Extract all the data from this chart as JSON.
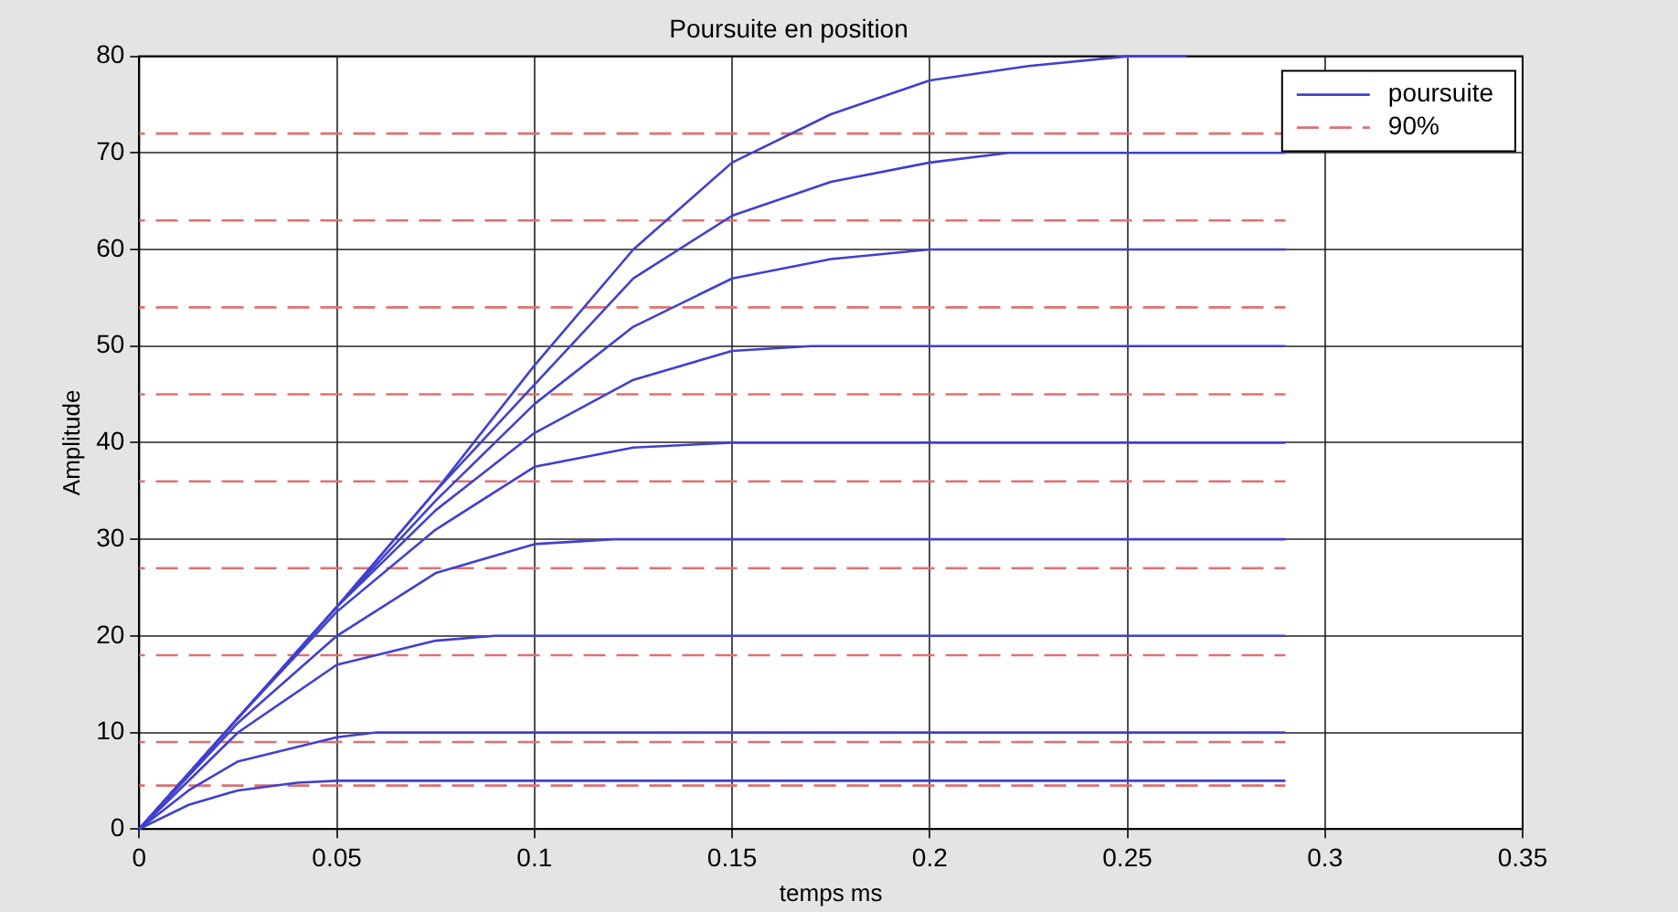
{
  "chart_data": {
    "type": "line",
    "title": "Poursuite en position",
    "xlabel": "temps ms",
    "ylabel": "Amplitude",
    "xlim": [
      0,
      0.35
    ],
    "xticks": [
      0,
      0.05,
      0.1,
      0.15,
      0.2,
      0.25,
      0.3,
      0.35
    ],
    "ylim": [
      0,
      80
    ],
    "yticks": [
      0,
      10,
      20,
      30,
      40,
      50,
      60,
      70,
      80
    ],
    "grid": true,
    "legend": "top right",
    "marker": "none",
    "series": [
      {
        "name": "poursuite",
        "color": "#4040d0",
        "x": [
          0,
          0.025,
          0.05,
          0.075,
          0.1,
          0.125,
          0.15,
          0.175,
          0.2,
          0.225,
          0.25,
          0.265
        ],
        "values": [
          0,
          11.5,
          23,
          35,
          48,
          60,
          69,
          74,
          77.5,
          79,
          80,
          80
        ]
      },
      {
        "color": "#4040d0",
        "x": [
          0,
          0.025,
          0.05,
          0.075,
          0.1,
          0.125,
          0.15,
          0.175,
          0.2,
          0.22,
          0.29
        ],
        "values": [
          0,
          11.5,
          23,
          35,
          46,
          57,
          63.5,
          67,
          69,
          70,
          70
        ]
      },
      {
        "color": "#4040d0",
        "x": [
          0,
          0.025,
          0.05,
          0.075,
          0.1,
          0.125,
          0.15,
          0.175,
          0.2,
          0.21,
          0.29
        ],
        "values": [
          0,
          11.5,
          23,
          34,
          44,
          52,
          57,
          59,
          60,
          60,
          60
        ]
      },
      {
        "color": "#4040d0",
        "x": [
          0,
          0.025,
          0.05,
          0.075,
          0.1,
          0.125,
          0.15,
          0.17,
          0.29
        ],
        "values": [
          0,
          11.5,
          23,
          33,
          41,
          46.5,
          49.5,
          50,
          50
        ]
      },
      {
        "color": "#4040d0",
        "x": [
          0,
          0.025,
          0.05,
          0.075,
          0.1,
          0.125,
          0.15,
          0.29
        ],
        "values": [
          0,
          11.5,
          22.5,
          31,
          37.5,
          39.5,
          40,
          40
        ]
      },
      {
        "color": "#4040d0",
        "x": [
          0,
          0.025,
          0.05,
          0.075,
          0.1,
          0.12,
          0.29
        ],
        "values": [
          0,
          11,
          20,
          26.5,
          29.5,
          30,
          30
        ]
      },
      {
        "color": "#4040d0",
        "x": [
          0,
          0.025,
          0.05,
          0.075,
          0.09,
          0.29
        ],
        "values": [
          0,
          10,
          17,
          19.5,
          20,
          20
        ]
      },
      {
        "color": "#4040d0",
        "x": [
          0,
          0.0125,
          0.025,
          0.05,
          0.06,
          0.29
        ],
        "values": [
          0,
          4,
          7,
          9.5,
          10,
          10
        ]
      },
      {
        "color": "#4040d0",
        "x": [
          0,
          0.0125,
          0.025,
          0.04,
          0.05,
          0.29
        ],
        "values": [
          0,
          2.5,
          4,
          4.8,
          5,
          5
        ]
      },
      {
        "name": "90%",
        "color": "#e07070",
        "line_style": "dashed",
        "x": [
          0,
          0.29
        ],
        "values": [
          72,
          72
        ]
      },
      {
        "color": "#e07070",
        "line_style": "dashed",
        "x": [
          0,
          0.29
        ],
        "values": [
          63,
          63
        ]
      },
      {
        "color": "#e07070",
        "line_style": "dashed",
        "x": [
          0,
          0.29
        ],
        "values": [
          54,
          54
        ]
      },
      {
        "color": "#e07070",
        "line_style": "dashed",
        "x": [
          0,
          0.29
        ],
        "values": [
          45,
          45
        ]
      },
      {
        "color": "#e07070",
        "line_style": "dashed",
        "x": [
          0,
          0.29
        ],
        "values": [
          36,
          36
        ]
      },
      {
        "color": "#e07070",
        "line_style": "dashed",
        "x": [
          0,
          0.29
        ],
        "values": [
          27,
          27
        ]
      },
      {
        "color": "#e07070",
        "line_style": "dashed",
        "x": [
          0,
          0.29
        ],
        "values": [
          18,
          18
        ]
      },
      {
        "color": "#e07070",
        "line_style": "dashed",
        "x": [
          0,
          0.29
        ],
        "values": [
          9,
          9
        ]
      },
      {
        "color": "#e07070",
        "line_style": "dashed",
        "x": [
          0,
          0.29
        ],
        "values": [
          4.5,
          4.5
        ]
      }
    ]
  }
}
